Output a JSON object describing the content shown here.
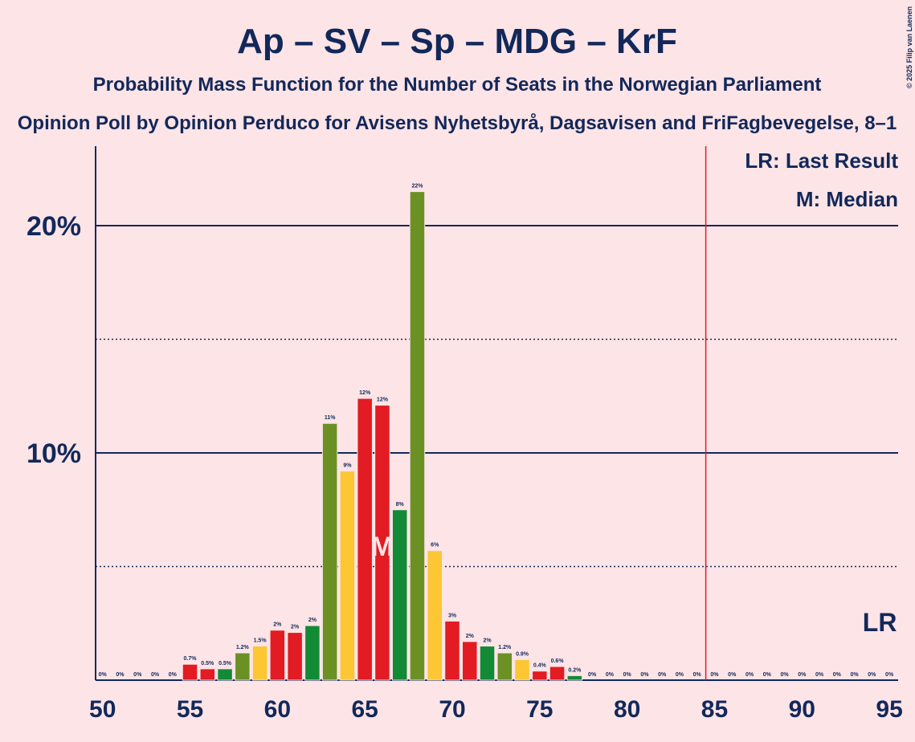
{
  "chart_data": {
    "type": "bar",
    "title": "Ap – SV – Sp – MDG – KrF",
    "subtitle": "Probability Mass Function for the Number of Seats in the Norwegian Parliament",
    "subtitle2": "Opinion Poll by Opinion Perduco for Avisens Nyhetsbyrå, Dagsavisen and FriFagbevegelse, 8–1",
    "copyright": "© 2025 Filip van Laenen",
    "legend": [
      "LR: Last Result",
      "M: Median"
    ],
    "x": [
      50,
      51,
      52,
      53,
      54,
      55,
      56,
      57,
      58,
      59,
      60,
      61,
      62,
      63,
      64,
      65,
      66,
      67,
      68,
      69,
      70,
      71,
      72,
      73,
      74,
      75,
      76,
      77,
      78,
      79,
      80,
      81,
      82,
      83,
      84,
      85,
      86,
      87,
      88,
      89,
      90,
      91,
      92,
      93,
      94,
      95
    ],
    "values": [
      0,
      0,
      0,
      0,
      0,
      0.7,
      0.5,
      0.5,
      1.2,
      1.5,
      2.2,
      2.1,
      2.4,
      11.3,
      9.2,
      12.4,
      12.1,
      7.5,
      21.5,
      5.7,
      2.6,
      1.7,
      1.5,
      1.2,
      0.9,
      0.4,
      0.6,
      0.2,
      0,
      0,
      0,
      0,
      0,
      0,
      0,
      0,
      0,
      0,
      0,
      0,
      0,
      0,
      0,
      0,
      0,
      0
    ],
    "value_labels": [
      "0%",
      "0%",
      "0%",
      "0%",
      "0%",
      "0.7%",
      "0.5%",
      "0.5%",
      "1.2%",
      "1.5%",
      "2%",
      "2%",
      "2%",
      "11%",
      "9%",
      "12%",
      "12%",
      "8%",
      "22%",
      "6%",
      "3%",
      "2%",
      "2%",
      "1.2%",
      "0.9%",
      "0.4%",
      "0.6%",
      "0.2%",
      "0%",
      "0%",
      "0%",
      "0%",
      "0%",
      "0%",
      "0%",
      "0%",
      "0%",
      "0%",
      "0%",
      "0%",
      "0%",
      "0%",
      "0%",
      "0%",
      "0%",
      "0%"
    ],
    "colors": [
      "#e31b23",
      "#e31b23",
      "#138a36",
      "#6b9125",
      "#fdc633",
      "#e31b23",
      "#e31b23",
      "#138a36",
      "#6b9125",
      "#fdc633",
      "#e31b23",
      "#e31b23",
      "#138a36",
      "#6b9125",
      "#fdc633",
      "#e31b23",
      "#e31b23",
      "#138a36",
      "#6b9125",
      "#fdc633",
      "#e31b23",
      "#e31b23",
      "#138a36",
      "#6b9125",
      "#fdc633",
      "#e31b23",
      "#e31b23",
      "#138a36",
      "#6b9125",
      "#fdc633",
      "#e31b23",
      "#e31b23",
      "#138a36",
      "#6b9125",
      "#fdc633",
      "#e31b23",
      "#e31b23",
      "#138a36",
      "#6b9125",
      "#fdc633",
      "#e31b23",
      "#e31b23",
      "#138a36",
      "#6b9125",
      "#fdc633",
      "#e31b23"
    ],
    "xlim": [
      49.6,
      95.5
    ],
    "xticks": [
      50,
      55,
      60,
      65,
      70,
      75,
      80,
      85,
      90,
      95
    ],
    "ylim": [
      0,
      23.5
    ],
    "yticks": [
      {
        "value": 10,
        "label": "10%"
      },
      {
        "value": 20,
        "label": "20%"
      }
    ],
    "minor_yticks": [
      5,
      15
    ],
    "median": 66,
    "median_label": "M",
    "last_result": 95,
    "last_result_label": "LR",
    "majority": 85,
    "majority_color": "#e31b23"
  }
}
